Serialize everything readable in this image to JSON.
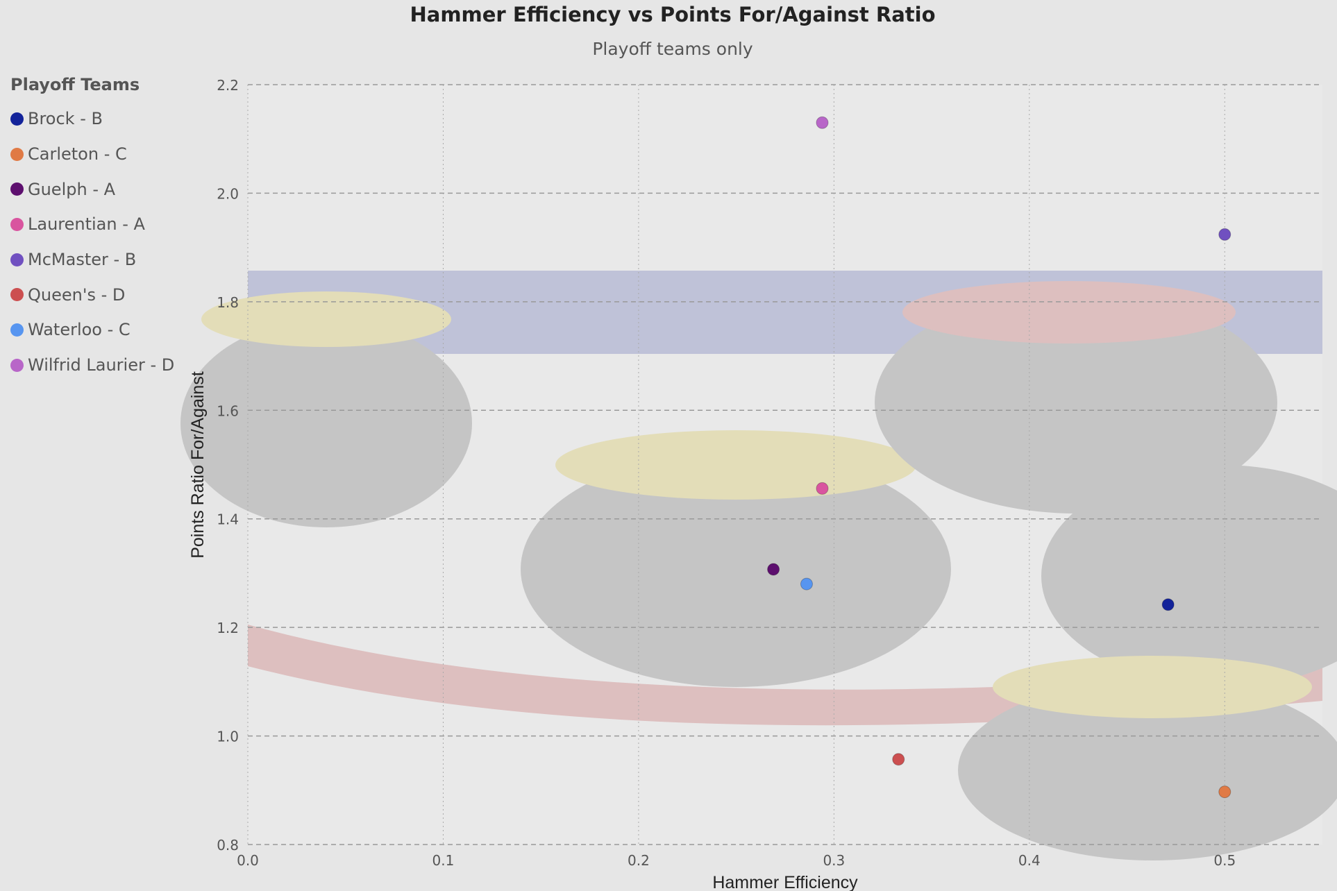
{
  "chart_data": {
    "type": "scatter",
    "title": "Hammer Efficiency vs Points For/Against Ratio",
    "subtitle": "Playoff teams only",
    "xlabel": "Hammer Efficiency",
    "ylabel": "Points Ratio For/Against",
    "xlim": [
      0,
      0.55
    ],
    "ylim": [
      0.8,
      2.2
    ],
    "xticks": [
      "0.0",
      "0.1",
      "0.2",
      "0.3",
      "0.4",
      "0.5"
    ],
    "yticks": [
      "0.8",
      "1.0",
      "1.2",
      "1.4",
      "1.6",
      "1.8",
      "2.0",
      "2.2"
    ],
    "grid": true,
    "legend_title": "Playoff Teams",
    "legend_position": "left",
    "series": [
      {
        "name": "Brock - B",
        "color": "#13239a",
        "x": 0.471,
        "y": 1.242
      },
      {
        "name": "Carleton - C",
        "color": "#e07a45",
        "x": 0.5,
        "y": 0.897
      },
      {
        "name": "Guelph - A",
        "color": "#5d0f6e",
        "x": 0.269,
        "y": 1.307
      },
      {
        "name": "Laurentian - A",
        "color": "#d9549f",
        "x": 0.294,
        "y": 1.456
      },
      {
        "name": "McMaster - B",
        "color": "#7050c0",
        "x": 0.5,
        "y": 1.924
      },
      {
        "name": "Queen's - D",
        "color": "#cc4f50",
        "x": 0.333,
        "y": 0.957
      },
      {
        "name": "Waterloo - C",
        "color": "#5795f0",
        "x": 0.286,
        "y": 1.28
      },
      {
        "name": "Wilfrid Laurier - D",
        "color": "#b866c8",
        "x": 0.294,
        "y": 2.13
      }
    ]
  }
}
